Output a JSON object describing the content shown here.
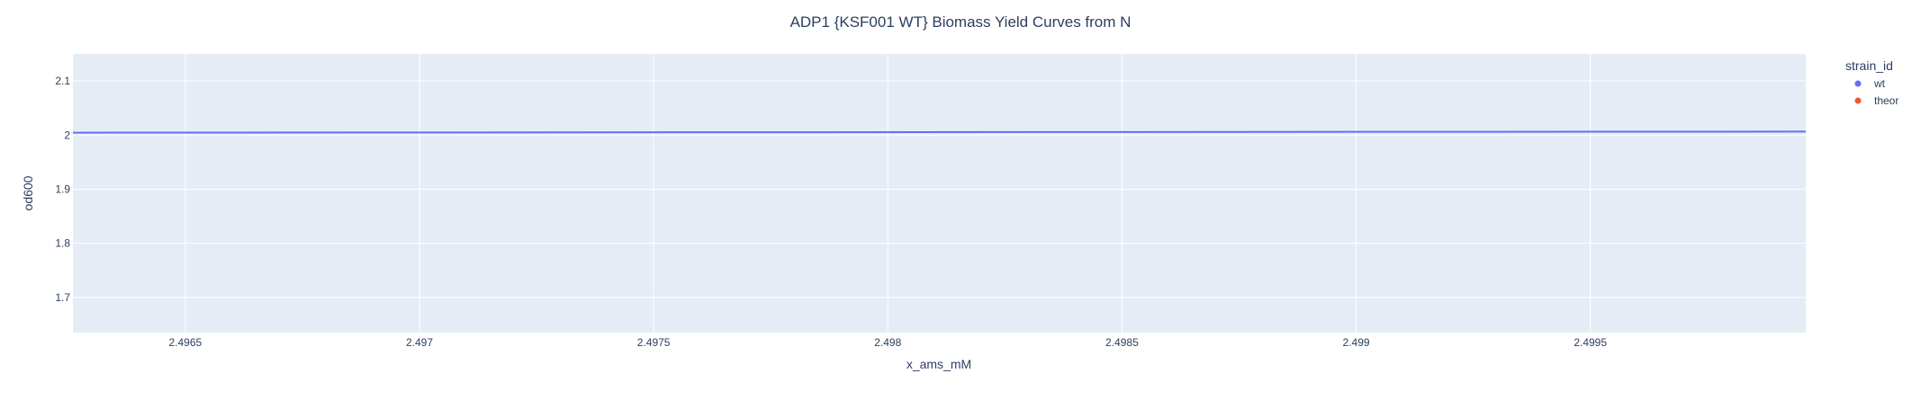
{
  "colors": {
    "plot_bg": "#E5ECF6",
    "grid": "#FFFFFF",
    "text": "#2A3F5F",
    "wt": "#636EFA",
    "theor": "#EF553B"
  },
  "chart_data": {
    "type": "line",
    "title": "ADP1 {KSF001 WT} Biomass Yield Curves from N",
    "xlabel": "x_ams_mM",
    "ylabel": "od600",
    "xlim": [
      2.49626,
      2.49996
    ],
    "ylim": [
      1.635,
      2.15
    ],
    "x_ticks": [
      2.4965,
      2.497,
      2.4975,
      2.498,
      2.4985,
      2.499,
      2.4995
    ],
    "x_tick_labels": [
      "2.4965",
      "2.497",
      "2.4975",
      "2.498",
      "2.4985",
      "2.499",
      "2.4995"
    ],
    "y_ticks": [
      1.7,
      1.8,
      1.9,
      2.0,
      2.1
    ],
    "y_tick_labels": [
      "1.7",
      "1.8",
      "1.9",
      "2",
      "2.1"
    ],
    "grid": true,
    "legend": {
      "title": "strain_id",
      "placement": "top-right",
      "entries": [
        "wt",
        "theor"
      ]
    },
    "series": [
      {
        "name": "wt",
        "mode": "lines",
        "x": [
          2.49626,
          2.49996
        ],
        "y": [
          2.0045,
          2.0065
        ]
      },
      {
        "name": "theor",
        "mode": "markers",
        "x": [],
        "y": []
      }
    ]
  }
}
